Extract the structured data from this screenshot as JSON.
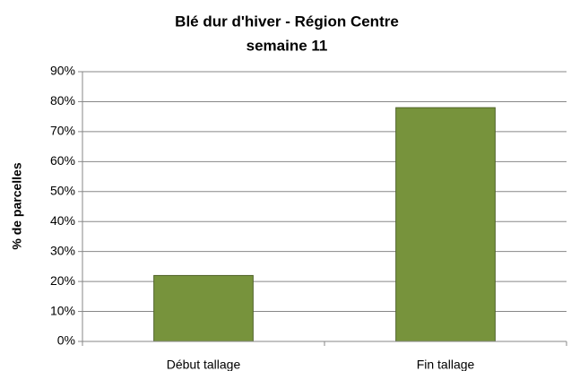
{
  "chart_data": {
    "type": "bar",
    "title": "Blé dur d'hiver - Région Centre",
    "subtitle": "semaine 11",
    "y_label": "% de parcelles",
    "categories": [
      "Début tallage",
      "Fin tallage"
    ],
    "values": [
      22,
      78
    ],
    "color": "#77933c",
    "ylim": [
      0,
      90
    ],
    "yticks": [
      {
        "value": 0,
        "label": "0%"
      },
      {
        "value": 10,
        "label": "10%"
      },
      {
        "value": 20,
        "label": "20%"
      },
      {
        "value": 30,
        "label": "30%"
      },
      {
        "value": 40,
        "label": "40%"
      },
      {
        "value": 50,
        "label": "50%"
      },
      {
        "value": 60,
        "label": "60%"
      },
      {
        "value": 70,
        "label": "70%"
      },
      {
        "value": 80,
        "label": "80%"
      },
      {
        "value": 90,
        "label": "90%"
      }
    ],
    "grid": true
  }
}
